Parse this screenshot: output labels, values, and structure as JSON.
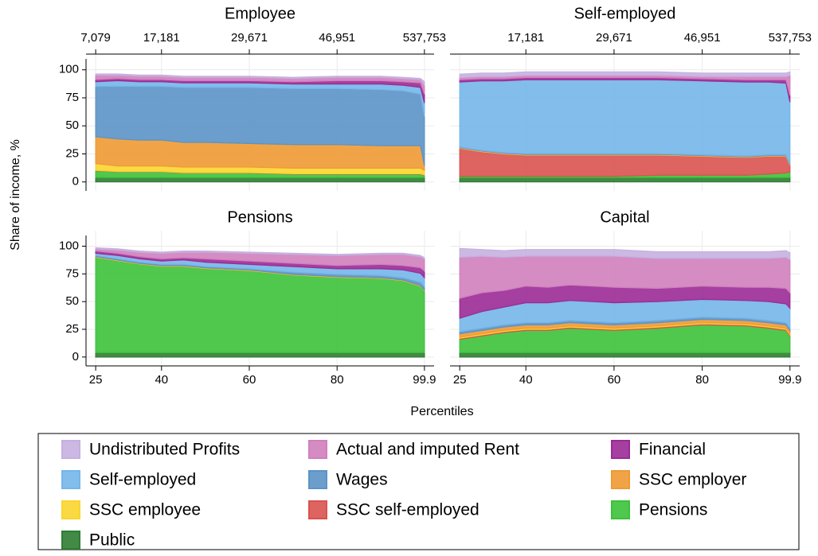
{
  "chart_data": {
    "type": "area",
    "ylabel": "Share of income, %",
    "xlabel": "Percentiles",
    "x": [
      25,
      30,
      35,
      40,
      45,
      50,
      60,
      70,
      80,
      90,
      95,
      99,
      99.9
    ],
    "xlim": [
      22.8,
      102.1
    ],
    "xticks": [
      25,
      40,
      60,
      80,
      99.9
    ],
    "ylim": [
      -8,
      114
    ],
    "yticks": [
      0,
      25,
      50,
      75,
      100
    ],
    "grid": true,
    "legend": [
      {
        "name": "Public",
        "color": "#2e7d32"
      },
      {
        "name": "Pensions",
        "color": "#3cc23a"
      },
      {
        "name": "SSC self-employed",
        "color": "#d9534f"
      },
      {
        "name": "SSC employee",
        "color": "#f9d52f"
      },
      {
        "name": "SSC employer",
        "color": "#ef9a33"
      },
      {
        "name": "Wages",
        "color": "#5b93c6"
      },
      {
        "name": "Self-employed",
        "color": "#74b6ea"
      },
      {
        "name": "Financial",
        "color": "#9b2a96"
      },
      {
        "name": "Actual and imputed Rent",
        "color": "#d07fbd"
      },
      {
        "name": "Undistributed Profits",
        "color": "#c5b0e0"
      }
    ],
    "panels": [
      {
        "title": "Employee",
        "top_xticks": [
          {
            "value": 25,
            "label": "7,079"
          },
          {
            "value": 40,
            "label": "17,181"
          },
          {
            "value": 60,
            "label": "29,671"
          },
          {
            "value": 80,
            "label": "46,951"
          },
          {
            "value": 99.9,
            "label": "537,753"
          }
        ],
        "series": [
          {
            "values": [
              4,
              4,
              4,
              4,
              4,
              4,
              4,
              4,
              4,
              4,
              4,
              4,
              4
            ]
          },
          {
            "values": [
              6,
              5,
              5,
              5,
              4,
              4,
              4,
              3,
              3,
              3,
              3,
              3,
              2
            ]
          },
          {
            "values": [
              0.3,
              0.3,
              0.3,
              0.3,
              0.3,
              0.3,
              0.3,
              0.3,
              0.3,
              0.3,
              0.3,
              0.3,
              0.3
            ]
          },
          {
            "values": [
              6,
              5,
              5,
              5,
              5,
              5,
              5,
              5,
              5,
              5,
              5,
              5,
              4
            ]
          },
          {
            "values": [
              24,
              24,
              23,
              23,
              22,
              22,
              21,
              21,
              21,
              20,
              20,
              20,
              4
            ]
          },
          {
            "values": [
              45,
              47,
              48,
              48,
              49,
              49,
              50,
              50,
              50,
              50,
              49,
              46,
              44
            ]
          },
          {
            "values": [
              4,
              5,
              4,
              4,
              4,
              4,
              4,
              4,
              4,
              5,
              5,
              6,
              12
            ]
          },
          {
            "values": [
              2,
              2,
              2,
              2,
              2,
              2,
              2,
              2,
              3,
              3,
              3,
              4,
              8
            ]
          },
          {
            "values": [
              4,
              3,
              3,
              3,
              3,
              3,
              3,
              3,
              3,
              3,
              3,
              3,
              8
            ]
          },
          {
            "values": [
              1,
              1,
              1,
              1,
              1,
              1,
              1,
              1,
              1,
              1,
              1,
              1,
              3
            ]
          }
        ]
      },
      {
        "title": "Self-employed",
        "top_xticks": [
          {
            "value": 40,
            "label": "17,181"
          },
          {
            "value": 60,
            "label": "29,671"
          },
          {
            "value": 80,
            "label": "46,951"
          },
          {
            "value": 99.9,
            "label": "537,753"
          }
        ],
        "series": [
          {
            "values": [
              4,
              4,
              4,
              4,
              4,
              4,
              4,
              4,
              4,
              4,
              4,
              4,
              4
            ]
          },
          {
            "values": [
              1,
              1,
              1,
              1,
              1,
              1,
              1,
              2,
              2,
              2,
              3,
              4,
              5
            ]
          },
          {
            "values": [
              25,
              22,
              20,
              19,
              19,
              19,
              19,
              18,
              17,
              16,
              16,
              15,
              6
            ]
          },
          {
            "values": [
              0.3,
              0.3,
              0.3,
              0.3,
              0.3,
              0.3,
              0.3,
              0.3,
              0.3,
              0.3,
              0.3,
              0.3,
              0.3
            ]
          },
          {
            "values": [
              0.3,
              0.3,
              0.3,
              0.3,
              0.3,
              0.3,
              0.3,
              0.3,
              0.3,
              0.3,
              0.3,
              0.3,
              0.3
            ]
          },
          {
            "values": [
              0.5,
              0.5,
              0.5,
              0.5,
              0.5,
              0.5,
              0.5,
              0.5,
              0.5,
              0.5,
              0.5,
              0.5,
              0.5
            ]
          },
          {
            "values": [
              58,
              62,
              64,
              66,
              66,
              66,
              66,
              66,
              66,
              66,
              65,
              64,
              55
            ]
          },
          {
            "values": [
              2,
              2,
              2,
              2,
              2,
              2,
              2,
              2,
              2,
              2,
              2,
              3,
              6
            ]
          },
          {
            "values": [
              2,
              2,
              2,
              2,
              2,
              2,
              2,
              2,
              2,
              3,
              3,
              3,
              18
            ]
          },
          {
            "values": [
              3,
              3,
              3,
              3,
              3,
              3,
              3,
              3,
              3,
              3,
              3,
              3,
              3
            ]
          }
        ]
      },
      {
        "title": "Pensions",
        "series": [
          {
            "values": [
              4,
              4,
              4,
              4,
              4,
              4,
              4,
              4,
              4,
              4,
              4,
              4,
              4
            ]
          },
          {
            "values": [
              86,
              83,
              80,
              78,
              78,
              76,
              74,
              70,
              68,
              67,
              65,
              60,
              56
            ]
          },
          {
            "values": [
              0,
              0,
              0,
              0,
              0,
              0,
              0,
              0,
              0,
              0,
              0,
              0,
              0
            ]
          },
          {
            "values": [
              0.3,
              0.3,
              0.3,
              0.3,
              0.3,
              0.3,
              0.3,
              0.3,
              0.3,
              0.3,
              0.3,
              0.3,
              0.3
            ]
          },
          {
            "values": [
              0.3,
              0.3,
              0.3,
              0.3,
              0.3,
              0.3,
              0.3,
              0.3,
              0.3,
              0.3,
              0.3,
              0.3,
              0.3
            ]
          },
          {
            "values": [
              1,
              1,
              1,
              1,
              1,
              1,
              1,
              2,
              2,
              2,
              2,
              3,
              3
            ]
          },
          {
            "values": [
              2,
              3,
              3,
              3,
              4,
              4,
              4,
              5,
              5,
              6,
              7,
              8,
              8
            ]
          },
          {
            "values": [
              2,
              2,
              2,
              2,
              2,
              3,
              3,
              3,
              3,
              4,
              4,
              5,
              6
            ]
          },
          {
            "values": [
              2,
              3,
              4,
              5,
              5,
              6,
              7,
              8,
              9,
              9,
              10,
              10,
              11
            ]
          },
          {
            "values": [
              1,
              1,
              1,
              1,
              1,
              1,
              1,
              1,
              1,
              1,
              1,
              1,
              1
            ]
          }
        ]
      },
      {
        "title": "Capital",
        "series": [
          {
            "values": [
              4,
              4,
              4,
              4,
              4,
              4,
              4,
              4,
              4,
              4,
              4,
              4,
              4
            ]
          },
          {
            "values": [
              12,
              15,
              18,
              20,
              20,
              22,
              20,
              22,
              25,
              24,
              22,
              20,
              15
            ]
          },
          {
            "values": [
              1,
              1,
              1,
              1,
              1,
              1,
              1,
              1,
              1,
              1,
              1,
              1,
              1
            ]
          },
          {
            "values": [
              1,
              1,
              1,
              1,
              1,
              1,
              1,
              1,
              1,
              1,
              1,
              1,
              1
            ]
          },
          {
            "values": [
              3,
              3,
              3,
              3,
              3,
              3,
              3,
              3,
              3,
              3,
              3,
              3,
              3
            ]
          },
          {
            "values": [
              2,
              2,
              2,
              2,
              2,
              2,
              2,
              2,
              2,
              2,
              2,
              2,
              2
            ]
          },
          {
            "values": [
              12,
              15,
              16,
              18,
              18,
              18,
              18,
              17,
              16,
              16,
              17,
              17,
              18
            ]
          },
          {
            "values": [
              18,
              17,
              15,
              15,
              14,
              14,
              14,
              12,
              12,
              12,
              13,
              14,
              14
            ]
          },
          {
            "values": [
              37,
              33,
              30,
              27,
              28,
              26,
              28,
              27,
              25,
              26,
              26,
              28,
              30
            ]
          },
          {
            "values": [
              8,
              6,
              6,
              6,
              6,
              6,
              6,
              6,
              6,
              6,
              6,
              6,
              6
            ]
          }
        ]
      }
    ]
  }
}
